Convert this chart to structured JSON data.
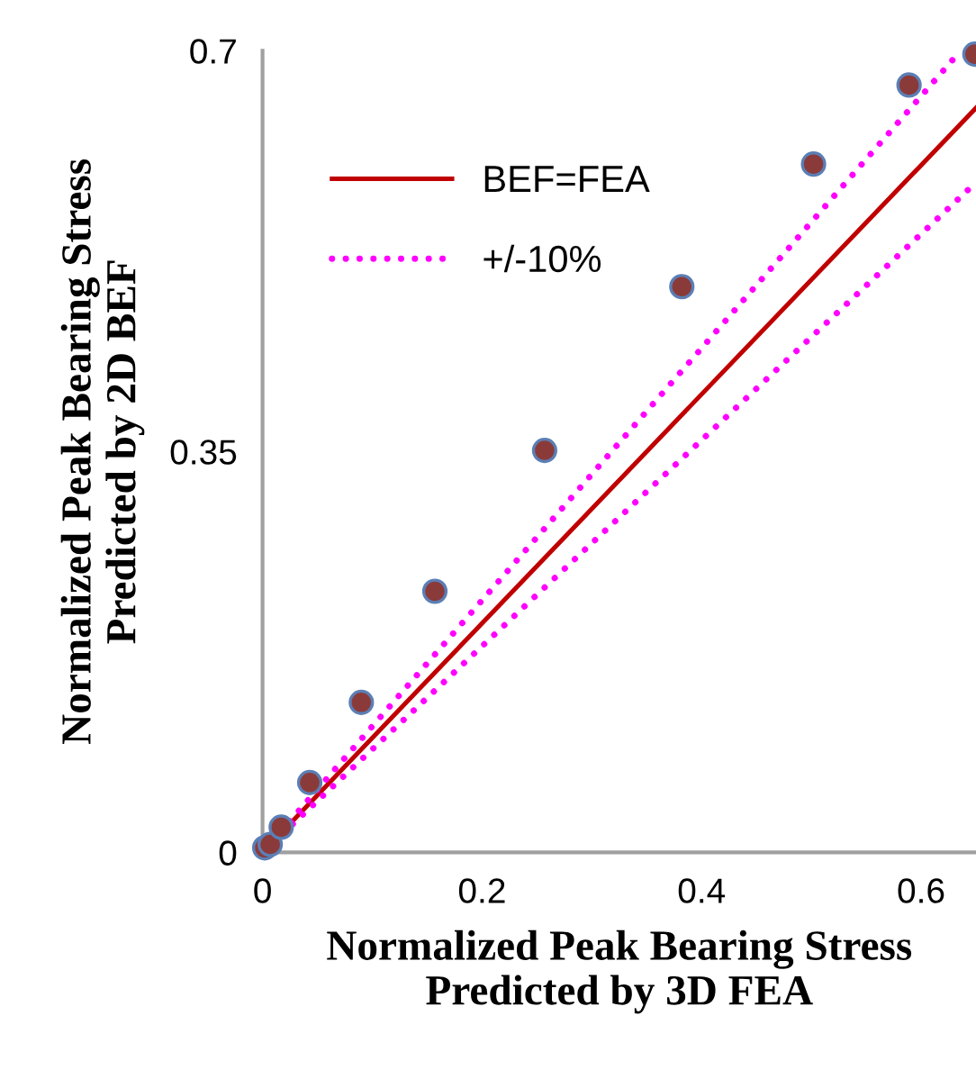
{
  "chart_data": {
    "type": "scatter",
    "xlabel": "Normalized Peak Bearing Stress\nPredicted by 3D FEA",
    "ylabel": "Normalized Peak Bearing Stress\nPredicted by 2D BEF",
    "xlim": [
      0,
      0.65
    ],
    "ylim": [
      0,
      0.7
    ],
    "xticks": [
      0,
      0.2,
      0.4,
      0.6
    ],
    "yticks": [
      0,
      0.35,
      0.7
    ],
    "grid": false,
    "legend": "top left",
    "marker": "circle",
    "series": [
      {
        "color": "#8b3a3a",
        "x": [
          0.002,
          0.007,
          0.017,
          0.043,
          0.09,
          0.157,
          0.257,
          0.382,
          0.502,
          0.589,
          0.649
        ],
        "values": [
          0.004,
          0.007,
          0.022,
          0.061,
          0.131,
          0.228,
          0.351,
          0.494,
          0.601,
          0.67,
          0.697
        ]
      },
      {
        "type": "line",
        "name": "BEF=FEA",
        "color": "#c00000",
        "line_style": "solid",
        "marker": "none",
        "x": [
          0,
          0.65
        ],
        "values": [
          0,
          0.65
        ]
      },
      {
        "type": "line",
        "name": "+/-10%",
        "color": "#ff00ff",
        "line_style": "dotted",
        "marker": "none",
        "x": [
          0,
          0.636
        ],
        "values": [
          0,
          0.7
        ]
      },
      {
        "type": "line",
        "color": "#ff00ff",
        "line_style": "dotted",
        "marker": "none",
        "x": [
          0,
          0.65
        ],
        "values": [
          0,
          0.585
        ]
      }
    ]
  }
}
